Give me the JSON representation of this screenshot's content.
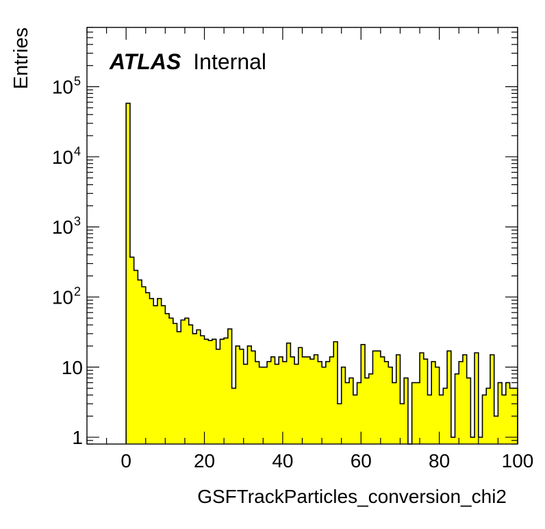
{
  "chart_data": {
    "type": "bar",
    "xlabel": "GSFTrackParticles_conversion_chi2",
    "ylabel": "Entries",
    "label_bold": "ATLAS",
    "label_text": "Internal",
    "xlim": [
      -10,
      100
    ],
    "ylim": [
      0.8,
      700000
    ],
    "yscale": "log",
    "x_ticks": [
      {
        "value": 0,
        "label": "0"
      },
      {
        "value": 20,
        "label": "20"
      },
      {
        "value": 40,
        "label": "40"
      },
      {
        "value": 60,
        "label": "60"
      },
      {
        "value": 80,
        "label": "80"
      },
      {
        "value": 100,
        "label": "100"
      }
    ],
    "y_ticks": [
      {
        "value": 1,
        "base": "1",
        "exp": ""
      },
      {
        "value": 10,
        "base": "10",
        "exp": ""
      },
      {
        "value": 100,
        "base": "10",
        "exp": "2"
      },
      {
        "value": 1000,
        "base": "10",
        "exp": "3"
      },
      {
        "value": 10000,
        "base": "10",
        "exp": "4"
      },
      {
        "value": 100000,
        "base": "10",
        "exp": "5"
      }
    ],
    "bin_start": 0,
    "bin_width": 1,
    "values": [
      58000,
      370,
      240,
      175,
      140,
      115,
      95,
      75,
      95,
      75,
      58,
      50,
      42,
      32,
      47,
      50,
      40,
      30,
      34,
      28,
      25,
      24,
      25,
      18,
      25,
      26,
      35,
      5,
      20,
      18,
      11,
      20,
      17,
      12,
      10,
      10,
      12,
      14,
      11,
      14,
      12,
      22,
      14,
      11,
      19,
      14,
      14,
      13,
      15,
      12,
      10,
      12,
      14,
      23,
      3,
      10,
      6,
      7,
      4,
      6,
      21,
      7,
      8,
      17,
      17,
      14,
      12,
      10,
      6,
      15,
      3,
      7,
      0.5,
      6,
      6,
      16,
      13,
      4,
      12,
      10,
      4,
      5,
      17,
      1,
      8,
      12,
      15,
      7,
      1,
      16,
      1,
      4,
      5,
      15,
      2,
      6,
      4,
      6,
      5,
      5
    ],
    "fill_color": "#ffff00",
    "line_color": "#000000",
    "grid": false
  }
}
